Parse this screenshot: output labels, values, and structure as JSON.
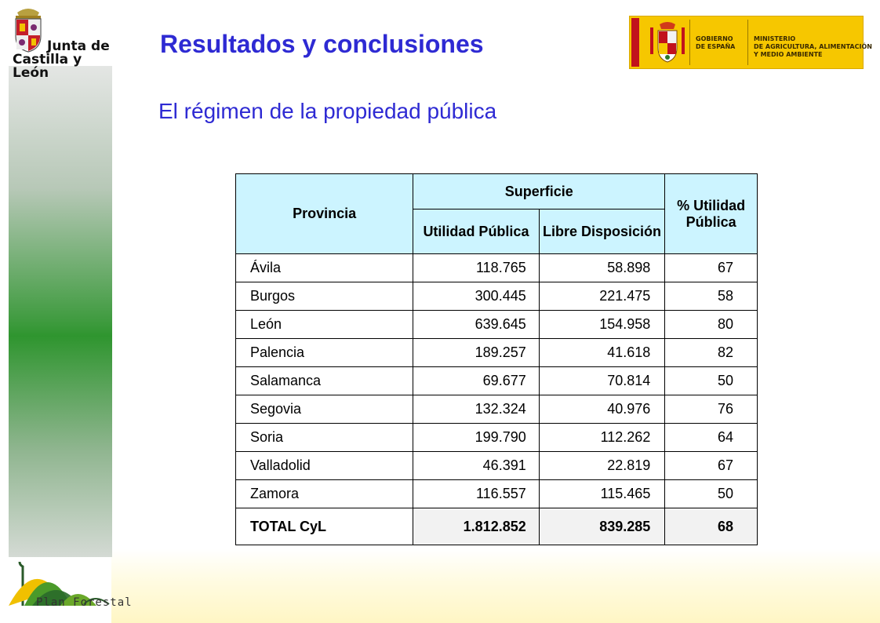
{
  "header": {
    "title": "Resultados y conclusiones",
    "subtitle": "El régimen de la propiedad pública"
  },
  "logos": {
    "jcyl": {
      "line1": "Junta de",
      "line2": "Castilla y León"
    },
    "gobierno": {
      "line1": "GOBIERNO",
      "line2": "DE ESPAÑA"
    },
    "ministerio": {
      "line1": "MINISTERIO",
      "line2": "DE AGRICULTURA, ALIMENTACIÓN",
      "line3": "Y MEDIO AMBIENTE"
    },
    "plan_forestal": "Plan Forestal"
  },
  "table": {
    "headers": {
      "provincia": "Provincia",
      "superficie": "Superficie",
      "utilidad_publica": "Utilidad Pública",
      "libre_disposicion": "Libre Disposición",
      "pct_utilidad": "% Utilidad Pública"
    },
    "rows": [
      {
        "provincia": "Ávila",
        "utilidad": "118.765",
        "libre": "58.898",
        "pct": "67"
      },
      {
        "provincia": "Burgos",
        "utilidad": "300.445",
        "libre": "221.475",
        "pct": "58"
      },
      {
        "provincia": "León",
        "utilidad": "639.645",
        "libre": "154.958",
        "pct": "80"
      },
      {
        "provincia": "Palencia",
        "utilidad": "189.257",
        "libre": "41.618",
        "pct": "82"
      },
      {
        "provincia": "Salamanca",
        "utilidad": "69.677",
        "libre": "70.814",
        "pct": "50"
      },
      {
        "provincia": "Segovia",
        "utilidad": "132.324",
        "libre": "40.976",
        "pct": "76"
      },
      {
        "provincia": "Soria",
        "utilidad": "199.790",
        "libre": "112.262",
        "pct": "64"
      },
      {
        "provincia": "Valladolid",
        "utilidad": "46.391",
        "libre": "22.819",
        "pct": "67"
      },
      {
        "provincia": "Zamora",
        "utilidad": "116.557",
        "libre": "115.465",
        "pct": "50"
      }
    ],
    "total": {
      "provincia": "TOTAL CyL",
      "utilidad": "1.812.852",
      "libre": "839.285",
      "pct": "68"
    }
  },
  "colors": {
    "title": "#2e2ad3",
    "header_fill": "#ccf4ff",
    "sidebar_green": "#2f952f",
    "gov_yellow": "#f6c700"
  }
}
